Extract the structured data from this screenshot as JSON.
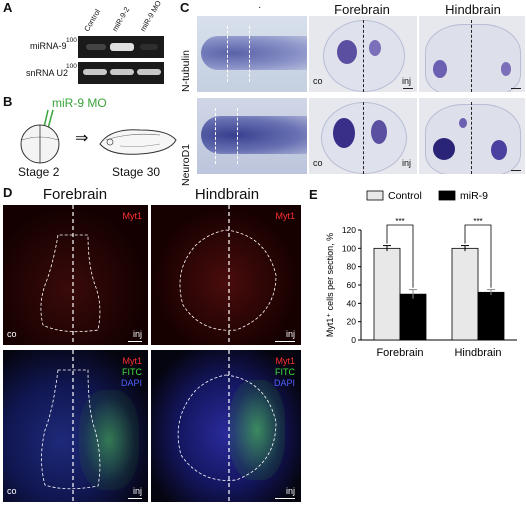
{
  "panel_a": {
    "label": "A",
    "lanes": [
      "Control",
      "miR-9-2",
      "miR-9 MO"
    ],
    "rows": [
      {
        "label": "miRNA-9",
        "ladder": "100"
      },
      {
        "label": "snRNA U2",
        "ladder": "100"
      }
    ]
  },
  "panel_b": {
    "label": "B",
    "mo_label": "miR-9 MO",
    "stage_left": "Stage 2",
    "stage_right": "Stage 30",
    "arrow": "⇒"
  },
  "panel_c": {
    "label": "C",
    "top_dot": "·",
    "col_headers": [
      "Forebrain",
      "Hindbrain"
    ],
    "rows": [
      "N-tubulin",
      "NeuroD1"
    ],
    "corner_left": "co",
    "corner_right": "inj"
  },
  "panel_d": {
    "label": "D",
    "col_headers": [
      "Forebrain",
      "Hindbrain"
    ],
    "top_channel": "Myt1",
    "bottom_channels": [
      "Myt1",
      "FITC",
      "DAPI"
    ],
    "corner_left": "co",
    "corner_right": "inj",
    "colors": {
      "myt1": "#ff3030",
      "fitc": "#40e040",
      "dapi": "#5060ff"
    }
  },
  "panel_e": {
    "label": "E",
    "chart_data": {
      "type": "bar",
      "categories": [
        "Forebrain",
        "Hindbrain"
      ],
      "series": [
        {
          "name": "Control",
          "values": [
            100,
            100
          ],
          "errors": [
            3,
            3
          ],
          "color": "#e8e8e8"
        },
        {
          "name": "miR-9",
          "values": [
            50,
            52
          ],
          "errors": [
            5,
            3
          ],
          "color": "#000000"
        }
      ],
      "ylabel": "Myt1⁺ cells per section, %",
      "ylim": [
        0,
        120
      ],
      "yticks": [
        0,
        20,
        40,
        60,
        80,
        100,
        120
      ],
      "significance": [
        "***",
        "***"
      ],
      "legend_position": "top"
    }
  }
}
